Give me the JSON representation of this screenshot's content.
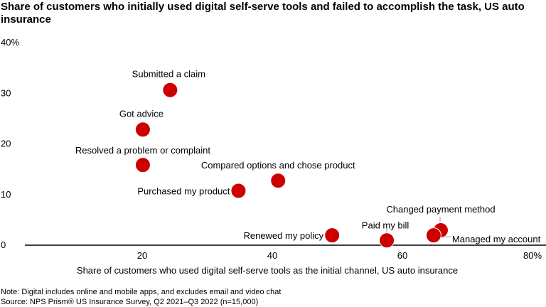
{
  "chart_data": {
    "type": "scatter",
    "title": "Share of customers who initially used digital self-serve tools and failed to accomplish the task, US auto insurance",
    "xlabel": "Share of customers who used digital self-serve tools as the initial channel, US auto insurance",
    "ylabel": "",
    "xlim": [
      0,
      80
    ],
    "ylim": [
      0,
      40
    ],
    "x_ticks": [
      "20",
      "40",
      "60",
      "80%"
    ],
    "y_ticks": [
      "0",
      "10",
      "20",
      "30",
      "40%"
    ],
    "grid": false,
    "point_color": "#cc0000",
    "points": [
      {
        "label": "Submitted a claim",
        "x": 24.3,
        "y": 30.5
      },
      {
        "label": "Got advice",
        "x": 20.1,
        "y": 22.7
      },
      {
        "label": "Resolved a problem or complaint",
        "x": 20.1,
        "y": 15.7
      },
      {
        "label": "Purchased my product",
        "x": 34.8,
        "y": 10.6
      },
      {
        "label": "Compared options and chose product",
        "x": 40.9,
        "y": 12.6
      },
      {
        "label": "Renewed my policy",
        "x": 49.2,
        "y": 1.8
      },
      {
        "label": "Paid my bill",
        "x": 57.6,
        "y": 0.8
      },
      {
        "label": "Changed payment method",
        "x": 65.9,
        "y": 2.8
      },
      {
        "label": "Managed my account",
        "x": 64.8,
        "y": 1.8
      }
    ]
  },
  "notes": {
    "note": "Note: Digital includes online and mobile apps, and excludes email and video chat",
    "source": "Source: NPS Prism® US Insurance Survey, Q2 2021–Q3 2022 (n=15,000)"
  }
}
